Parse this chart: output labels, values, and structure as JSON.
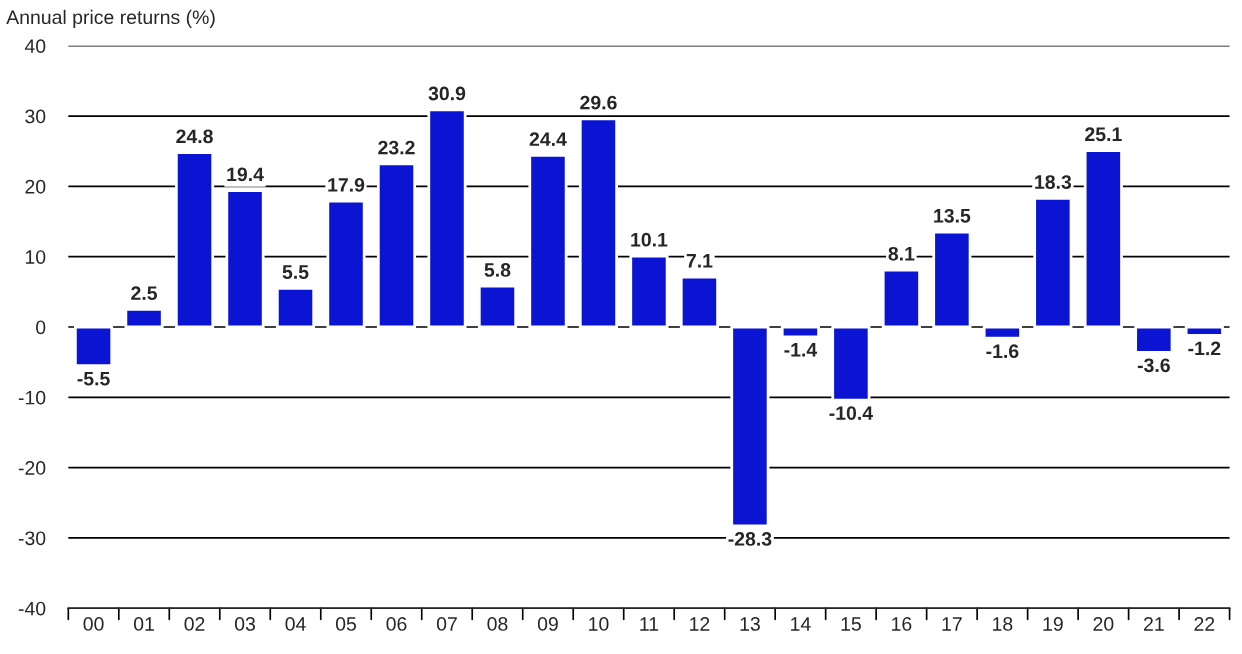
{
  "chart_data": {
    "type": "bar",
    "ylabel": "Annual price returns (%)",
    "categories": [
      "00",
      "01",
      "02",
      "03",
      "04",
      "05",
      "06",
      "07",
      "08",
      "09",
      "10",
      "11",
      "12",
      "13",
      "14",
      "15",
      "16",
      "17",
      "18",
      "19",
      "20",
      "21",
      "22"
    ],
    "values": [
      -5.5,
      2.5,
      24.8,
      19.4,
      5.5,
      17.9,
      23.2,
      30.9,
      5.8,
      24.4,
      29.6,
      10.1,
      7.1,
      -28.3,
      -1.4,
      -10.4,
      8.1,
      13.5,
      -1.6,
      18.3,
      25.1,
      -3.6,
      -1.2
    ],
    "color": "#0a14d2",
    "ylim": [
      -40,
      40
    ],
    "yticks": [
      -40,
      -30,
      -20,
      -10,
      0,
      10,
      20,
      30,
      40
    ],
    "grid": "y",
    "data_labels": true,
    "legend": false
  }
}
